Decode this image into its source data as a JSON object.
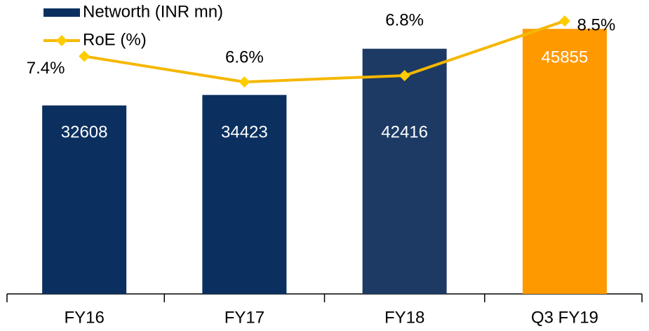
{
  "chart_data": {
    "type": "bar-line",
    "categories": [
      "FY16",
      "FY17",
      "FY18",
      "Q3 FY19"
    ],
    "series": [
      {
        "name": "Networth (INR mn)",
        "type": "bar",
        "color": "#0b3060",
        "colors": [
          "#0b3060",
          "#0b3060",
          "#1c3a64",
          "#ff9900"
        ],
        "values": [
          32608,
          34423,
          42416,
          45855
        ]
      },
      {
        "name": "RoE (%)",
        "type": "line",
        "axis": "y2",
        "color": "#f5b700",
        "values": [
          7.4,
          6.6,
          6.8,
          8.5
        ],
        "value_labels": [
          "7.4%",
          "6.6%",
          "6.8%",
          "8.5%"
        ]
      }
    ],
    "ylim": [
      0,
      50000
    ],
    "y2lim": [
      0,
      9
    ],
    "legend": "top-left"
  }
}
